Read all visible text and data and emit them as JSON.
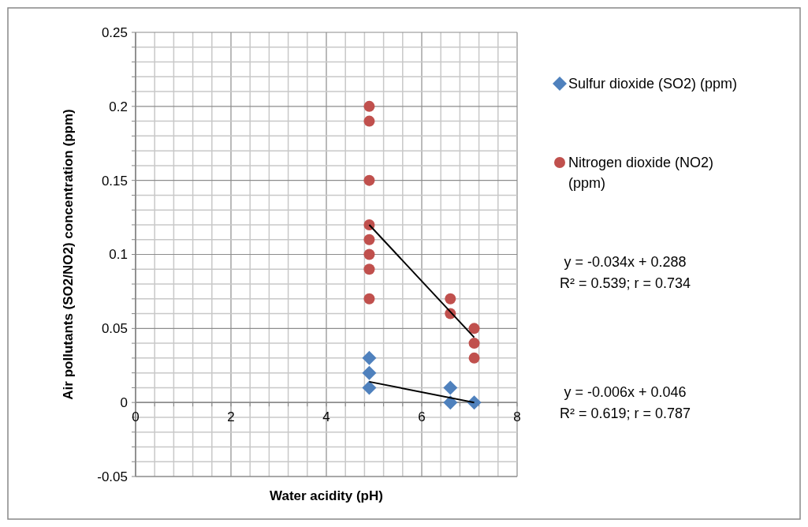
{
  "chart_data": {
    "type": "scatter",
    "xlabel": "Water acidity (pH)",
    "ylabel": "Air pollutants (SO2/NO2) concentration (ppm)",
    "xlim": [
      0,
      8
    ],
    "ylim": [
      -0.05,
      0.25
    ],
    "xticks": [
      0,
      {
        "value": 0.4,
        "label": null
      },
      {
        "value": 0.8,
        "label": null
      },
      {
        "value": 1.2,
        "label": null
      },
      {
        "value": 1.6,
        "label": null
      },
      2,
      {
        "value": 2.4,
        "label": null
      },
      {
        "value": 2.8,
        "label": null
      },
      {
        "value": 3.2,
        "label": null
      },
      {
        "value": 3.6,
        "label": null
      },
      4,
      {
        "value": 4.4,
        "label": null
      },
      {
        "value": 4.8,
        "label": null
      },
      {
        "value": 5.2,
        "label": null
      },
      {
        "value": 5.6,
        "label": null
      },
      6,
      {
        "value": 6.4,
        "label": null
      },
      {
        "value": 6.8,
        "label": null
      },
      {
        "value": 7.2,
        "label": null
      },
      {
        "value": 7.6,
        "label": null
      },
      8
    ],
    "yticks": [
      -0.05,
      {
        "value": -0.04,
        "label": null
      },
      {
        "value": -0.03,
        "label": null
      },
      {
        "value": -0.02,
        "label": null
      },
      {
        "value": -0.01,
        "label": null
      },
      0,
      {
        "value": 0.01,
        "label": null
      },
      {
        "value": 0.02,
        "label": null
      },
      {
        "value": 0.03,
        "label": null
      },
      {
        "value": 0.04,
        "label": null
      },
      0.05,
      {
        "value": 0.06,
        "label": null
      },
      {
        "value": 0.07,
        "label": null
      },
      {
        "value": 0.08,
        "label": null
      },
      {
        "value": 0.09,
        "label": null
      },
      0.1,
      {
        "value": 0.11,
        "label": null
      },
      {
        "value": 0.12,
        "label": null
      },
      {
        "value": 0.13,
        "label": null
      },
      {
        "value": 0.14,
        "label": null
      },
      0.15,
      {
        "value": 0.16,
        "label": null
      },
      {
        "value": 0.17,
        "label": null
      },
      {
        "value": 0.18,
        "label": null
      },
      {
        "value": 0.19,
        "label": null
      },
      0.2,
      {
        "value": 0.21,
        "label": null
      },
      {
        "value": 0.22,
        "label": null
      },
      {
        "value": 0.23,
        "label": null
      },
      {
        "value": 0.24,
        "label": null
      },
      0.25
    ],
    "grid": true,
    "legend": "right",
    "series": [
      {
        "name": "Sulfur dioxide (SO2) (ppm)",
        "color": "#4f81bd",
        "marker": "diamond",
        "x": [
          4.9,
          4.9,
          4.9,
          6.6,
          6.6,
          7.1
        ],
        "values": [
          0.03,
          0.02,
          0.01,
          0.01,
          0,
          0
        ]
      },
      {
        "name": "Nitrogen dioxide (NO2) (ppm)",
        "color": "#c0504d",
        "marker": "circle",
        "x": [
          4.9,
          4.9,
          4.9,
          4.9,
          4.9,
          4.9,
          4.9,
          4.9,
          6.6,
          6.6,
          7.1,
          7.1,
          7.1
        ],
        "values": [
          0.2,
          0.19,
          0.15,
          0.12,
          0.11,
          0.1,
          0.09,
          0.07,
          0.07,
          0.06,
          0.05,
          0.04,
          0.03
        ]
      },
      {
        "type": "line",
        "color": "#000000",
        "marker": "none",
        "x": [
          4.9,
          7.1
        ],
        "values": [
          0.12,
          0.044
        ]
      },
      {
        "type": "line",
        "color": "#000000",
        "marker": "none",
        "x": [
          4.9,
          7.1
        ],
        "values": [
          0.014,
          0
        ]
      }
    ],
    "annotations": [
      "y = -0.034x + 0.288",
      "R² = 0.539; r = 0.734",
      "y = -0.006x + 0.046",
      "R² = 0.619; r = 0.787"
    ]
  }
}
